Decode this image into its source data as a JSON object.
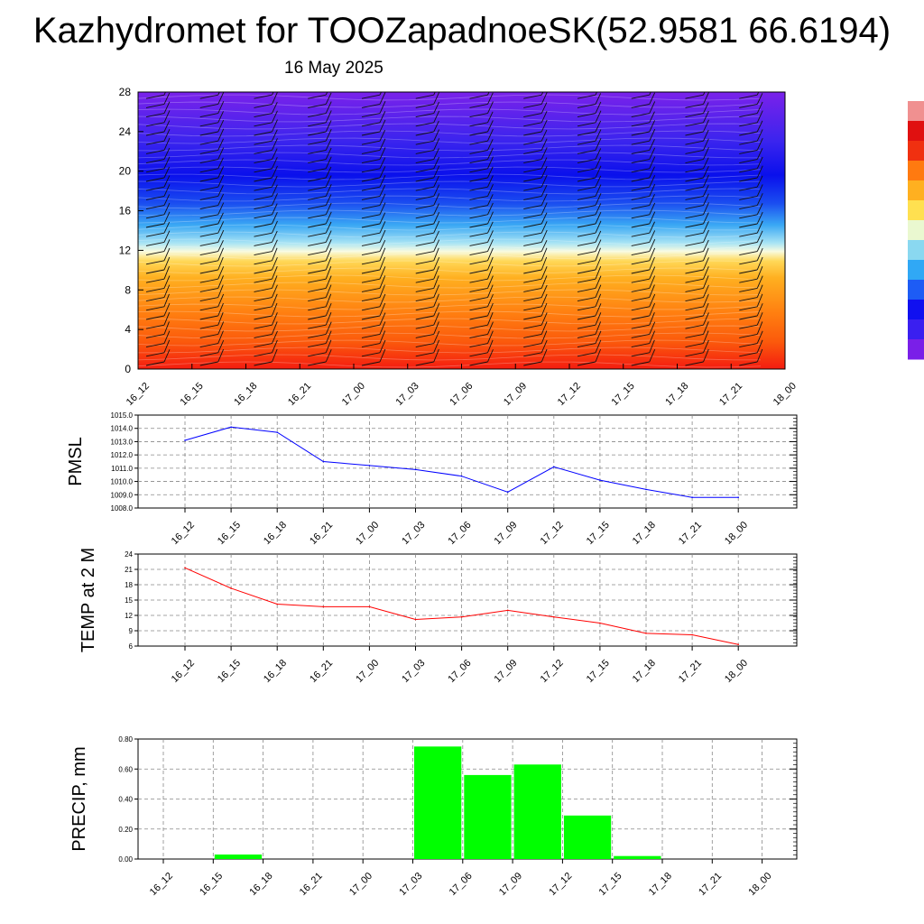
{
  "header": {
    "title": "Kazhydromet for TOOZapadnoeSK(52.9581 66.6194)",
    "date": "16 May 2025"
  },
  "chart_data": [
    {
      "type": "heatmap",
      "id": "vertical-profile",
      "title": "",
      "xlabel": "",
      "ylabel": "",
      "x_categories": [
        "16_12",
        "16_15",
        "16_18",
        "16_21",
        "17_00",
        "17_03",
        "17_06",
        "17_09",
        "17_12",
        "17_15",
        "17_18",
        "17_21",
        "18_00"
      ],
      "y_ticks": [
        "0",
        "4",
        "8",
        "12",
        "16",
        "20",
        "24",
        "28"
      ],
      "ylim": [
        0,
        28
      ],
      "overlay": "wind barbs",
      "colorbar_colors": [
        "#7a1fe8",
        "#3a1ff0",
        "#1010f0",
        "#1d5cf5",
        "#30a8f5",
        "#8ad8f0",
        "#eaf8d0",
        "#ffe050",
        "#ffb020",
        "#ff7a10",
        "#f03010",
        "#e01010",
        "#f09090"
      ]
    },
    {
      "type": "line",
      "id": "pmsl",
      "ylabel": "PMSL",
      "x_categories": [
        "16_12",
        "16_15",
        "16_18",
        "16_21",
        "17_00",
        "17_03",
        "17_06",
        "17_09",
        "17_12",
        "17_15",
        "17_18",
        "17_21",
        "18_00"
      ],
      "y_ticks": [
        "1008.0",
        "1009.0",
        "1010.0",
        "1011.0",
        "1012.0",
        "1013.0",
        "1014.0",
        "1015.0"
      ],
      "ylim": [
        1008,
        1015
      ],
      "color": "#0000ff",
      "values": [
        1013.1,
        1014.1,
        1013.7,
        1011.5,
        1011.2,
        1010.9,
        1010.4,
        1009.2,
        1011.1,
        1010.1,
        1009.4,
        1008.8,
        1008.8
      ]
    },
    {
      "type": "line",
      "id": "temp",
      "ylabel": "TEMP at 2 M",
      "x_categories": [
        "16_12",
        "16_15",
        "16_18",
        "16_21",
        "17_00",
        "17_03",
        "17_06",
        "17_09",
        "17_12",
        "17_15",
        "17_18",
        "17_21",
        "18_00"
      ],
      "y_ticks": [
        "6",
        "9",
        "12",
        "15",
        "18",
        "21",
        "24"
      ],
      "ylim": [
        6,
        24
      ],
      "color": "#ff0000",
      "values": [
        21.3,
        17.3,
        14.2,
        13.7,
        13.7,
        11.2,
        11.7,
        13.0,
        11.7,
        10.5,
        8.5,
        8.2,
        6.3
      ]
    },
    {
      "type": "bar",
      "id": "precip",
      "ylabel": "PRECIP, mm",
      "x_categories": [
        "16_12",
        "16_15",
        "16_18",
        "16_21",
        "17_00",
        "17_03",
        "17_06",
        "17_09",
        "17_12",
        "17_15",
        "17_18",
        "17_21",
        "18_00"
      ],
      "y_ticks": [
        "0.00",
        "0.20",
        "0.40",
        "0.60",
        "0.80"
      ],
      "ylim": [
        0,
        0.8
      ],
      "color": "#00ff00",
      "values": [
        0,
        0.03,
        0,
        0,
        0,
        0.75,
        0.56,
        0.63,
        0.29,
        0.02,
        0,
        0,
        0
      ]
    }
  ]
}
